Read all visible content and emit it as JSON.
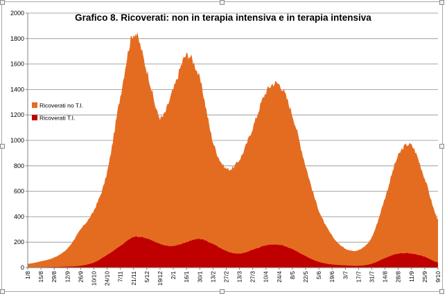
{
  "chart_data": {
    "type": "area",
    "title": "Grafico 8. Ricoverati: non in terapia intensiva e in terapia intensiva",
    "xlabel": "",
    "ylabel": "",
    "ylim": [
      0,
      2000
    ],
    "yticks": [
      0,
      200,
      400,
      600,
      800,
      1000,
      1200,
      1400,
      1600,
      1800,
      2000
    ],
    "grid": true,
    "legend_position": "left",
    "x_ticks": [
      "1/8",
      "15/8",
      "29/8",
      "12/9",
      "26/9",
      "10/10",
      "24/10",
      "7/11",
      "21/11",
      "5/12",
      "19/12",
      "2/1",
      "16/1",
      "30/1",
      "13/2",
      "27/2",
      "13/3",
      "27/3",
      "10/4",
      "24/4",
      "8/5",
      "22/5",
      "5/6",
      "19/6",
      "3/7",
      "17/7",
      "31/7",
      "14/8",
      "28/8",
      "11/9",
      "25/9",
      "9/10"
    ],
    "series": [
      {
        "name": "Ricoverati no T.I.",
        "color": "#e46c21",
        "x_dates": [
          "1/8",
          "15/8",
          "29/8",
          "12/9",
          "26/9",
          "10/10",
          "24/10",
          "7/11",
          "21/11",
          "5/12",
          "19/12",
          "2/1",
          "16/1",
          "30/1",
          "13/2",
          "27/2",
          "13/3",
          "27/3",
          "10/4",
          "24/4",
          "8/5",
          "22/5",
          "5/6",
          "19/6",
          "3/7",
          "17/7",
          "31/7",
          "14/8",
          "28/8",
          "11/9",
          "25/9",
          "9/10"
        ],
        "values": [
          30,
          50,
          80,
          150,
          300,
          450,
          750,
          1350,
          1840,
          1550,
          1180,
          1400,
          1670,
          1480,
          990,
          780,
          850,
          1100,
          1380,
          1440,
          1200,
          800,
          450,
          250,
          150,
          140,
          240,
          550,
          880,
          960,
          700,
          380
        ]
      },
      {
        "name": "Ricoverati T.I.",
        "color": "#c00000",
        "x_dates": [
          "1/8",
          "15/8",
          "29/8",
          "12/9",
          "26/9",
          "10/10",
          "24/10",
          "7/11",
          "21/11",
          "5/12",
          "19/12",
          "2/1",
          "16/1",
          "30/1",
          "13/2",
          "27/2",
          "13/3",
          "27/3",
          "10/4",
          "24/4",
          "8/5",
          "22/5",
          "5/6",
          "19/6",
          "3/7",
          "17/7",
          "31/7",
          "14/8",
          "28/8",
          "11/9",
          "25/9",
          "9/10"
        ],
        "values": [
          2,
          3,
          5,
          8,
          15,
          40,
          100,
          170,
          240,
          230,
          185,
          170,
          200,
          225,
          185,
          130,
          110,
          140,
          175,
          180,
          145,
          90,
          45,
          25,
          18,
          15,
          30,
          75,
          110,
          110,
          85,
          40
        ]
      }
    ]
  }
}
